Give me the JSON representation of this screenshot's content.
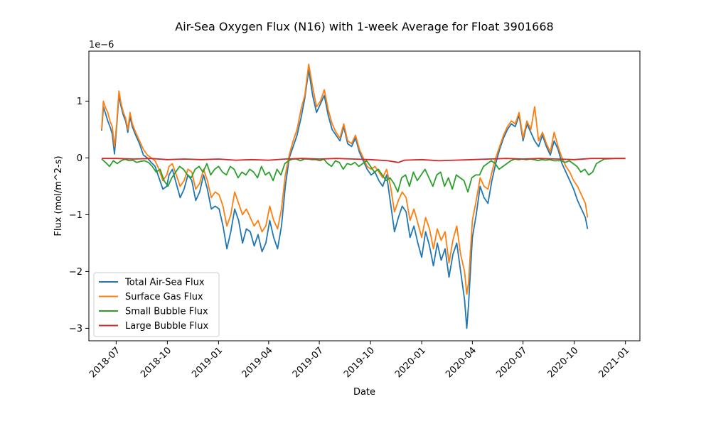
{
  "chart_data": {
    "type": "line",
    "title": "Air-Sea Oxygen Flux (N16) with 1-week Average for Float 3901668",
    "xlabel": "Date",
    "ylabel": "Flux (mol/m^2-s)",
    "y_scale_label": "1e−6",
    "y_scale": 1e-06,
    "xlim": [
      "2018-05-13",
      "2021-01-27"
    ],
    "ylim": [
      -3.22,
      1.88
    ],
    "x_ticks": [
      "2018-07-01",
      "2018-10-01",
      "2019-01-01",
      "2019-04-01",
      "2019-07-01",
      "2019-10-01",
      "2020-01-01",
      "2020-04-01",
      "2020-07-01",
      "2020-10-01",
      "2021-01-01"
    ],
    "x_tick_labels": [
      "2018-07",
      "2018-10",
      "2019-01",
      "2019-04",
      "2019-07",
      "2019-10",
      "2020-01",
      "2020-04",
      "2020-07",
      "2020-10",
      "2021-01"
    ],
    "y_ticks": [
      1,
      0,
      -1,
      -2,
      -3
    ],
    "y_tick_labels": [
      "1",
      "0",
      "−1",
      "−2",
      "−3"
    ],
    "grid": false,
    "legend_position": "lower-left",
    "series": [
      {
        "name": "Total Air-Sea Flux",
        "color": "#1f77b4",
        "x": [
          "2018-06-05",
          "2018-06-08",
          "2018-06-12",
          "2018-06-16",
          "2018-06-20",
          "2018-06-24",
          "2018-06-28",
          "2018-07-02",
          "2018-07-06",
          "2018-07-10",
          "2018-07-14",
          "2018-07-18",
          "2018-07-22",
          "2018-07-26",
          "2018-07-30",
          "2018-08-05",
          "2018-08-12",
          "2018-08-19",
          "2018-08-26",
          "2018-09-02",
          "2018-09-09",
          "2018-09-16",
          "2018-09-23",
          "2018-09-30",
          "2018-10-04",
          "2018-10-10",
          "2018-10-17",
          "2018-10-24",
          "2018-10-31",
          "2018-11-07",
          "2018-11-14",
          "2018-11-21",
          "2018-11-28",
          "2018-12-05",
          "2018-12-12",
          "2018-12-19",
          "2018-12-26",
          "2019-01-02",
          "2019-01-09",
          "2019-01-16",
          "2019-01-23",
          "2019-01-30",
          "2019-02-06",
          "2019-02-13",
          "2019-02-20",
          "2019-02-27",
          "2019-03-06",
          "2019-03-13",
          "2019-03-20",
          "2019-03-27",
          "2019-04-03",
          "2019-04-10",
          "2019-04-17",
          "2019-04-24",
          "2019-05-01",
          "2019-05-08",
          "2019-05-15",
          "2019-05-22",
          "2019-05-29",
          "2019-06-05",
          "2019-06-12",
          "2019-06-19",
          "2019-06-26",
          "2019-07-03",
          "2019-07-10",
          "2019-07-17",
          "2019-07-24",
          "2019-07-31",
          "2019-08-07",
          "2019-08-14",
          "2019-08-21",
          "2019-08-28",
          "2019-09-04",
          "2019-09-11",
          "2019-09-18",
          "2019-09-25",
          "2019-10-02",
          "2019-10-09",
          "2019-10-16",
          "2019-10-23",
          "2019-10-30",
          "2019-11-06",
          "2019-11-13",
          "2019-11-20",
          "2019-11-27",
          "2019-12-04",
          "2019-12-11",
          "2019-12-18",
          "2019-12-25",
          "2020-01-01",
          "2020-01-08",
          "2020-01-15",
          "2020-01-22",
          "2020-01-29",
          "2020-02-05",
          "2020-02-12",
          "2020-02-19",
          "2020-02-26",
          "2020-03-04",
          "2020-03-11",
          "2020-03-18",
          "2020-03-22",
          "2020-03-25",
          "2020-04-01",
          "2020-04-08",
          "2020-04-15",
          "2020-04-22",
          "2020-04-29",
          "2020-05-06",
          "2020-05-13",
          "2020-05-20",
          "2020-05-27",
          "2020-06-03",
          "2020-06-10",
          "2020-06-17",
          "2020-06-24",
          "2020-07-01",
          "2020-07-08",
          "2020-07-15",
          "2020-07-22",
          "2020-07-29",
          "2020-08-05",
          "2020-08-12",
          "2020-08-19",
          "2020-08-26",
          "2020-09-02",
          "2020-09-09",
          "2020-09-16",
          "2020-09-23",
          "2020-09-30",
          "2020-10-07",
          "2020-10-14",
          "2020-10-21",
          "2020-10-25"
        ],
        "values": [
          0.48,
          0.9,
          0.78,
          0.65,
          0.55,
          0.42,
          0.07,
          0.55,
          1.1,
          0.9,
          0.75,
          0.65,
          0.45,
          0.72,
          0.55,
          0.4,
          0.25,
          0.05,
          0.0,
          -0.08,
          -0.15,
          -0.35,
          -0.55,
          -0.5,
          -0.3,
          -0.2,
          -0.45,
          -0.7,
          -0.55,
          -0.3,
          -0.4,
          -0.75,
          -0.6,
          -0.3,
          -0.55,
          -0.9,
          -0.85,
          -0.9,
          -1.2,
          -1.6,
          -1.3,
          -0.9,
          -1.1,
          -1.5,
          -1.25,
          -1.3,
          -1.55,
          -1.35,
          -1.65,
          -1.5,
          -1.1,
          -1.4,
          -1.6,
          -1.2,
          -0.5,
          0.0,
          0.2,
          0.4,
          0.7,
          1.05,
          1.55,
          1.1,
          0.8,
          0.95,
          1.1,
          0.75,
          0.5,
          0.4,
          0.3,
          0.55,
          0.25,
          0.2,
          0.35,
          0.1,
          -0.05,
          -0.2,
          -0.3,
          -0.25,
          -0.4,
          -0.5,
          -0.3,
          -0.8,
          -1.3,
          -1.05,
          -0.85,
          -0.95,
          -1.4,
          -1.2,
          -1.5,
          -1.75,
          -1.3,
          -1.55,
          -1.9,
          -1.5,
          -1.8,
          -1.6,
          -2.1,
          -1.7,
          -1.5,
          -2.0,
          -2.5,
          -3.0,
          -2.6,
          -1.4,
          -1.0,
          -0.5,
          -0.7,
          -0.8,
          -0.4,
          -0.1,
          0.15,
          0.35,
          0.5,
          0.6,
          0.55,
          0.75,
          0.3,
          0.6,
          0.45,
          0.3,
          0.2,
          0.4,
          0.2,
          0.05,
          0.3,
          0.15,
          -0.1,
          -0.25,
          -0.4,
          -0.55,
          -0.75,
          -0.9,
          -1.05,
          -1.25
        ]
      },
      {
        "name": "Surface Gas Flux",
        "color": "#ff7f0e",
        "x": [
          "2018-06-05",
          "2018-06-08",
          "2018-06-12",
          "2018-06-16",
          "2018-06-20",
          "2018-06-24",
          "2018-06-28",
          "2018-07-02",
          "2018-07-06",
          "2018-07-10",
          "2018-07-14",
          "2018-07-18",
          "2018-07-22",
          "2018-07-26",
          "2018-07-30",
          "2018-08-05",
          "2018-08-12",
          "2018-08-19",
          "2018-08-26",
          "2018-09-02",
          "2018-09-09",
          "2018-09-16",
          "2018-09-23",
          "2018-09-30",
          "2018-10-04",
          "2018-10-10",
          "2018-10-17",
          "2018-10-24",
          "2018-10-31",
          "2018-11-07",
          "2018-11-14",
          "2018-11-21",
          "2018-11-28",
          "2018-12-05",
          "2018-12-12",
          "2018-12-19",
          "2018-12-26",
          "2019-01-02",
          "2019-01-09",
          "2019-01-16",
          "2019-01-23",
          "2019-01-30",
          "2019-02-06",
          "2019-02-13",
          "2019-02-20",
          "2019-02-27",
          "2019-03-06",
          "2019-03-13",
          "2019-03-20",
          "2019-03-27",
          "2019-04-03",
          "2019-04-10",
          "2019-04-17",
          "2019-04-24",
          "2019-05-01",
          "2019-05-08",
          "2019-05-15",
          "2019-05-22",
          "2019-05-29",
          "2019-06-05",
          "2019-06-12",
          "2019-06-19",
          "2019-06-26",
          "2019-07-03",
          "2019-07-10",
          "2019-07-17",
          "2019-07-24",
          "2019-07-31",
          "2019-08-07",
          "2019-08-14",
          "2019-08-21",
          "2019-08-28",
          "2019-09-04",
          "2019-09-11",
          "2019-09-18",
          "2019-09-25",
          "2019-10-02",
          "2019-10-09",
          "2019-10-16",
          "2019-10-23",
          "2019-10-30",
          "2019-11-06",
          "2019-11-13",
          "2019-11-20",
          "2019-11-27",
          "2019-12-04",
          "2019-12-11",
          "2019-12-18",
          "2019-12-25",
          "2020-01-01",
          "2020-01-08",
          "2020-01-15",
          "2020-01-22",
          "2020-01-29",
          "2020-02-05",
          "2020-02-12",
          "2020-02-19",
          "2020-02-26",
          "2020-03-04",
          "2020-03-11",
          "2020-03-18",
          "2020-03-22",
          "2020-03-25",
          "2020-04-01",
          "2020-04-08",
          "2020-04-15",
          "2020-04-22",
          "2020-04-29",
          "2020-05-06",
          "2020-05-13",
          "2020-05-20",
          "2020-05-27",
          "2020-06-03",
          "2020-06-10",
          "2020-06-17",
          "2020-06-24",
          "2020-07-01",
          "2020-07-08",
          "2020-07-15",
          "2020-07-22",
          "2020-07-29",
          "2020-08-05",
          "2020-08-12",
          "2020-08-19",
          "2020-08-26",
          "2020-09-02",
          "2020-09-09",
          "2020-09-16",
          "2020-09-23",
          "2020-09-30",
          "2020-10-07",
          "2020-10-14",
          "2020-10-21",
          "2020-10-25"
        ],
        "values": [
          0.5,
          1.0,
          0.88,
          0.8,
          0.65,
          0.55,
          0.2,
          0.6,
          1.18,
          0.95,
          0.8,
          0.7,
          0.5,
          0.8,
          0.6,
          0.45,
          0.3,
          0.15,
          0.05,
          0.0,
          -0.05,
          -0.2,
          -0.4,
          -0.3,
          -0.15,
          -0.1,
          -0.3,
          -0.5,
          -0.4,
          -0.2,
          -0.25,
          -0.55,
          -0.45,
          -0.2,
          -0.4,
          -0.7,
          -0.6,
          -0.65,
          -0.85,
          -1.2,
          -1.0,
          -0.6,
          -0.8,
          -1.0,
          -0.9,
          -1.05,
          -1.2,
          -1.1,
          -1.3,
          -1.2,
          -0.85,
          -1.1,
          -1.25,
          -0.9,
          -0.3,
          0.05,
          0.3,
          0.5,
          0.85,
          1.1,
          1.65,
          1.25,
          0.9,
          1.0,
          1.2,
          0.85,
          0.6,
          0.45,
          0.35,
          0.6,
          0.3,
          0.25,
          0.4,
          0.15,
          0.0,
          -0.15,
          -0.2,
          -0.15,
          -0.25,
          -0.35,
          -0.2,
          -0.5,
          -0.95,
          -0.75,
          -0.6,
          -0.7,
          -1.1,
          -0.9,
          -1.15,
          -1.4,
          -1.05,
          -1.25,
          -1.6,
          -1.25,
          -1.45,
          -1.3,
          -1.85,
          -1.45,
          -1.2,
          -1.7,
          -2.0,
          -2.4,
          -2.2,
          -1.1,
          -0.75,
          -0.35,
          -0.5,
          -0.55,
          -0.25,
          0.0,
          0.2,
          0.4,
          0.55,
          0.65,
          0.6,
          0.8,
          0.35,
          0.65,
          0.5,
          0.9,
          0.3,
          0.45,
          0.25,
          0.1,
          0.45,
          0.2,
          0.0,
          -0.15,
          -0.25,
          -0.4,
          -0.5,
          -0.65,
          -0.8,
          -1.05
        ]
      },
      {
        "name": "Small Bubble Flux",
        "color": "#2ca02c",
        "x": [
          "2018-06-05",
          "2018-06-12",
          "2018-06-19",
          "2018-06-26",
          "2018-07-03",
          "2018-07-10",
          "2018-07-17",
          "2018-07-24",
          "2018-07-31",
          "2018-08-07",
          "2018-08-14",
          "2018-08-21",
          "2018-08-28",
          "2018-09-04",
          "2018-09-11",
          "2018-09-18",
          "2018-09-25",
          "2018-10-02",
          "2018-10-09",
          "2018-10-16",
          "2018-10-23",
          "2018-10-30",
          "2018-11-06",
          "2018-11-13",
          "2018-11-20",
          "2018-11-27",
          "2018-12-04",
          "2018-12-11",
          "2018-12-18",
          "2018-12-25",
          "2019-01-01",
          "2019-01-08",
          "2019-01-15",
          "2019-01-22",
          "2019-01-29",
          "2019-02-05",
          "2019-02-12",
          "2019-02-19",
          "2019-02-26",
          "2019-03-05",
          "2019-03-12",
          "2019-03-19",
          "2019-03-26",
          "2019-04-02",
          "2019-04-09",
          "2019-04-16",
          "2019-04-23",
          "2019-04-30",
          "2019-05-07",
          "2019-05-14",
          "2019-05-21",
          "2019-05-28",
          "2019-06-04",
          "2019-06-11",
          "2019-06-18",
          "2019-06-25",
          "2019-07-02",
          "2019-07-09",
          "2019-07-16",
          "2019-07-23",
          "2019-07-30",
          "2019-08-06",
          "2019-08-13",
          "2019-08-20",
          "2019-08-27",
          "2019-09-03",
          "2019-09-10",
          "2019-09-17",
          "2019-09-24",
          "2019-10-01",
          "2019-10-08",
          "2019-10-15",
          "2019-10-22",
          "2019-10-29",
          "2019-11-05",
          "2019-11-12",
          "2019-11-19",
          "2019-11-26",
          "2019-12-03",
          "2019-12-10",
          "2019-12-17",
          "2019-12-24",
          "2019-12-31",
          "2020-01-07",
          "2020-01-14",
          "2020-01-21",
          "2020-01-28",
          "2020-02-04",
          "2020-02-11",
          "2020-02-18",
          "2020-02-25",
          "2020-03-03",
          "2020-03-10",
          "2020-03-17",
          "2020-03-24",
          "2020-03-31",
          "2020-04-07",
          "2020-04-14",
          "2020-04-21",
          "2020-04-28",
          "2020-05-05",
          "2020-05-12",
          "2020-05-19",
          "2020-05-26",
          "2020-06-02",
          "2020-06-09",
          "2020-06-16",
          "2020-06-23",
          "2020-06-30",
          "2020-07-07",
          "2020-07-14",
          "2020-07-21",
          "2020-07-28",
          "2020-08-04",
          "2020-08-11",
          "2020-08-18",
          "2020-08-25",
          "2020-09-01",
          "2020-09-08",
          "2020-09-15",
          "2020-09-22",
          "2020-09-29",
          "2020-10-06",
          "2020-10-13",
          "2020-10-20",
          "2020-10-27",
          "2020-11-03",
          "2020-11-10",
          "2020-11-24",
          "2020-12-15",
          "2021-01-01"
        ],
        "values": [
          -0.02,
          -0.08,
          -0.15,
          -0.05,
          -0.1,
          -0.05,
          -0.02,
          -0.05,
          -0.04,
          -0.08,
          -0.06,
          -0.05,
          -0.08,
          -0.15,
          -0.25,
          -0.2,
          -0.4,
          -0.5,
          -0.35,
          -0.25,
          -0.15,
          -0.2,
          -0.3,
          -0.35,
          -0.2,
          -0.15,
          -0.25,
          -0.1,
          -0.3,
          -0.2,
          -0.15,
          -0.25,
          -0.3,
          -0.15,
          -0.2,
          -0.35,
          -0.25,
          -0.3,
          -0.2,
          -0.25,
          -0.35,
          -0.15,
          -0.3,
          -0.25,
          -0.4,
          -0.2,
          -0.3,
          -0.1,
          -0.05,
          -0.02,
          -0.02,
          -0.05,
          -0.02,
          -0.02,
          -0.03,
          -0.03,
          -0.05,
          -0.02,
          -0.1,
          -0.15,
          -0.05,
          -0.08,
          -0.2,
          -0.1,
          -0.12,
          -0.08,
          -0.15,
          -0.1,
          -0.05,
          -0.15,
          -0.25,
          -0.2,
          -0.3,
          -0.4,
          -0.35,
          -0.45,
          -0.6,
          -0.35,
          -0.3,
          -0.5,
          -0.25,
          -0.4,
          -0.3,
          -0.2,
          -0.35,
          -0.5,
          -0.3,
          -0.25,
          -0.5,
          -0.35,
          -0.55,
          -0.3,
          -0.35,
          -0.4,
          -0.6,
          -0.35,
          -0.3,
          -0.3,
          -0.15,
          -0.1,
          -0.05,
          -0.1,
          -0.2,
          -0.15,
          -0.1,
          -0.05,
          -0.02,
          -0.03,
          -0.02,
          -0.03,
          -0.02,
          -0.03,
          -0.05,
          -0.03,
          -0.04,
          -0.03,
          -0.05,
          -0.05,
          -0.05,
          -0.08,
          -0.05,
          -0.1,
          -0.15,
          -0.25,
          -0.2,
          -0.3,
          -0.25,
          -0.1,
          -0.02,
          -0.01,
          -0.01
        ]
      },
      {
        "name": "Large Bubble Flux",
        "color": "#d62728",
        "x": [
          "2018-06-05",
          "2018-07-01",
          "2018-08-01",
          "2018-09-01",
          "2018-10-01",
          "2018-11-01",
          "2018-12-01",
          "2019-01-01",
          "2019-02-01",
          "2019-03-01",
          "2019-04-01",
          "2019-05-01",
          "2019-06-01",
          "2019-07-01",
          "2019-08-01",
          "2019-09-01",
          "2019-10-01",
          "2019-11-01",
          "2019-11-20",
          "2019-12-01",
          "2020-01-01",
          "2020-02-01",
          "2020-03-01",
          "2020-04-01",
          "2020-05-01",
          "2020-06-01",
          "2020-07-01",
          "2020-08-01",
          "2020-09-01",
          "2020-10-01",
          "2020-11-01",
          "2020-12-01",
          "2021-01-01"
        ],
        "values": [
          -0.01,
          -0.01,
          -0.02,
          -0.01,
          -0.03,
          -0.02,
          -0.03,
          -0.02,
          -0.04,
          -0.03,
          -0.04,
          -0.02,
          -0.01,
          -0.02,
          -0.01,
          -0.02,
          -0.03,
          -0.05,
          -0.08,
          -0.04,
          -0.03,
          -0.05,
          -0.04,
          -0.03,
          -0.02,
          -0.01,
          -0.02,
          -0.01,
          -0.02,
          -0.03,
          -0.01,
          -0.01,
          -0.01
        ]
      }
    ]
  }
}
